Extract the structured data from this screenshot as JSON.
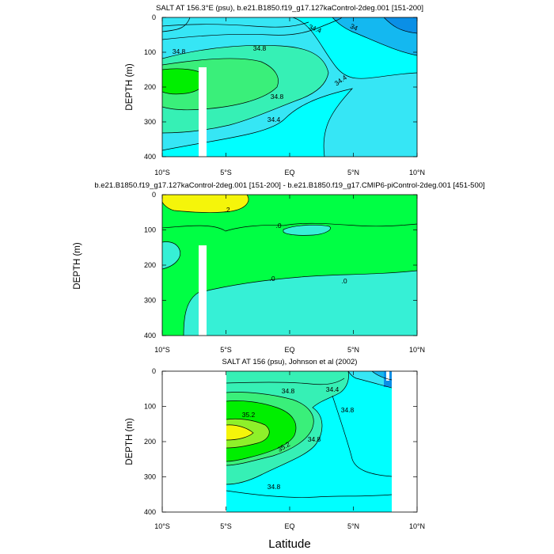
{
  "colors": {
    "s_lt34": "#0a8fe6",
    "s_34": "#14b8f0",
    "s_344": "#36e6f5",
    "s_346": "#00ffff",
    "s_348": "#36f0b5",
    "s_35": "#3aef7a",
    "s_352": "#00ef00",
    "s_354": "#8ef02a",
    "s_356": "#f5f50a",
    "d_neg": "#36f0d6",
    "d_zero": "#00ff44",
    "d_pos": "#f5f50a",
    "white": "#ffffff",
    "line": "#000000"
  },
  "chart_data": [
    {
      "type": "contour",
      "title": "SALT AT 156.3°E (psu), b.e21.B1850.f19_g17.127kaControl-2deg.001 [151-200]",
      "xlabel": "",
      "ylabel": "DEPTH (m)",
      "x_range": [
        -10,
        10
      ],
      "y_range": [
        400,
        0
      ],
      "x_ticks": [
        "10°S",
        "5°S",
        "EQ",
        "5°N",
        "10°N"
      ],
      "y_ticks": [
        "0",
        "100",
        "200",
        "300",
        "400"
      ],
      "contour_labels": [
        "34.4",
        "34",
        "34.8",
        "34.8",
        "34.4",
        "34.8",
        "34.4"
      ],
      "variable": "salinity (psu)"
    },
    {
      "type": "contour",
      "title": "b.e21.B1850.f19_g17.127kaControl-2deg.001 [151-200] - b.e21.B1850.f19_g17.CMIP6-piControl-2deg.001 [451-500]",
      "xlabel": "",
      "ylabel": "DEPTH (m)",
      "x_range": [
        -10,
        10
      ],
      "y_range": [
        400,
        0
      ],
      "x_ticks": [
        "10°S",
        "5°S",
        "EQ",
        "5°N",
        "10°N"
      ],
      "y_ticks": [
        "0",
        "100",
        "200",
        "300",
        "400"
      ],
      "contour_labels": [
        ".2",
        ".0",
        ".0",
        ".0"
      ],
      "variable": "salinity difference (psu)"
    },
    {
      "type": "contour",
      "title": "SALT AT 156 (psu), Johnson et al (2002)",
      "xlabel": "",
      "ylabel": "DEPTH (m)",
      "x_range": [
        -10,
        10
      ],
      "y_range": [
        400,
        0
      ],
      "x_ticks": [
        "10°S",
        "5°S",
        "EQ",
        "5°N",
        "10°N"
      ],
      "y_ticks": [
        "0",
        "100",
        "200",
        "300",
        "400"
      ],
      "data_extent_lat": [
        -5,
        8
      ],
      "contour_labels": [
        "34.4",
        "34.8",
        "34.8",
        "35.2",
        "35.2",
        "34.8",
        "34.8"
      ],
      "variable": "salinity (psu)"
    }
  ],
  "shared_xlabel": "Latitude"
}
